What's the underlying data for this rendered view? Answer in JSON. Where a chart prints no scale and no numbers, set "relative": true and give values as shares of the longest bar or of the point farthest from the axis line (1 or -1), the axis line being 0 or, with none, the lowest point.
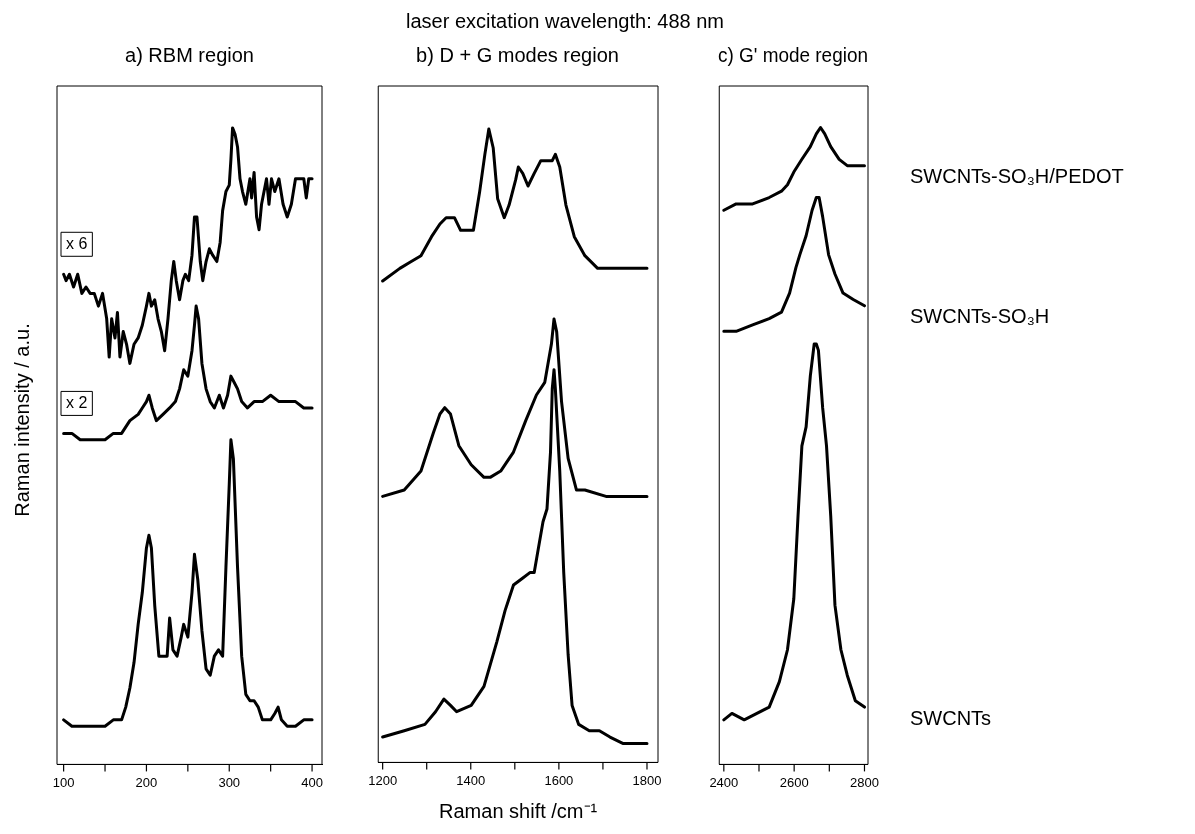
{
  "chart_data": [
    {
      "type": "line",
      "title": "a) RBM region",
      "ylabel": "Raman intensity / a.u.",
      "relative": true,
      "xlim": [
        92,
        412
      ],
      "xticks": [
        100,
        {
          "value": 150,
          "label": null
        },
        200,
        {
          "value": 250,
          "label": null
        },
        300,
        {
          "value": 350,
          "label": null
        },
        400
      ],
      "tick_labels": "x",
      "legend": false,
      "marker": "none",
      "line_style": "solid",
      "annotations": [
        "x 6",
        "x 2"
      ],
      "series": [
        {
          "color": "#000000",
          "x": [
            100,
            103,
            107,
            112,
            117,
            122,
            127,
            132,
            137,
            142,
            147,
            152,
            155,
            158,
            162,
            165,
            168,
            172,
            176,
            180,
            185,
            190,
            195,
            200,
            203,
            206,
            210,
            214,
            218,
            222,
            226,
            230,
            233,
            236,
            240,
            244,
            247,
            251,
            255,
            258,
            261,
            265,
            268,
            272,
            276,
            280,
            285,
            289,
            292,
            296,
            300,
            302,
            304,
            307,
            310,
            313,
            316,
            320,
            325,
            327,
            330,
            333,
            336,
            339,
            342,
            345,
            348,
            351,
            355,
            360,
            365,
            370,
            375,
            380,
            385,
            390,
            393,
            396,
            400
          ],
          "values": [
            0.77,
            0.76,
            0.77,
            0.75,
            0.77,
            0.74,
            0.75,
            0.74,
            0.74,
            0.72,
            0.74,
            0.7,
            0.64,
            0.7,
            0.67,
            0.71,
            0.64,
            0.68,
            0.66,
            0.63,
            0.66,
            0.67,
            0.69,
            0.72,
            0.74,
            0.72,
            0.73,
            0.7,
            0.68,
            0.65,
            0.7,
            0.76,
            0.79,
            0.76,
            0.73,
            0.76,
            0.77,
            0.76,
            0.8,
            0.86,
            0.86,
            0.79,
            0.76,
            0.79,
            0.81,
            0.8,
            0.79,
            0.82,
            0.87,
            0.9,
            0.91,
            0.95,
            1,
            0.99,
            0.97,
            0.92,
            0.9,
            0.88,
            0.92,
            0.89,
            0.93,
            0.86,
            0.84,
            0.88,
            0.9,
            0.92,
            0.88,
            0.92,
            0.9,
            0.92,
            0.88,
            0.86,
            0.88,
            0.92,
            0.92,
            0.92,
            0.89,
            0.92,
            0.92
          ]
        },
        {
          "color": "#000000",
          "x": [
            100,
            110,
            120,
            130,
            140,
            150,
            160,
            170,
            180,
            190,
            195,
            200,
            203,
            207,
            212,
            220,
            228,
            235,
            240,
            245,
            250,
            255,
            258,
            260,
            263,
            267,
            272,
            277,
            282,
            288,
            293,
            298,
            302,
            306,
            310,
            315,
            322,
            330,
            340,
            350,
            360,
            370,
            380,
            390,
            400
          ],
          "values": [
            0.52,
            0.52,
            0.51,
            0.51,
            0.51,
            0.51,
            0.52,
            0.52,
            0.54,
            0.55,
            0.56,
            0.57,
            0.58,
            0.56,
            0.54,
            0.55,
            0.56,
            0.57,
            0.59,
            0.62,
            0.61,
            0.65,
            0.69,
            0.72,
            0.7,
            0.63,
            0.59,
            0.57,
            0.56,
            0.58,
            0.56,
            0.58,
            0.61,
            0.6,
            0.59,
            0.57,
            0.56,
            0.57,
            0.57,
            0.58,
            0.57,
            0.57,
            0.57,
            0.56,
            0.56
          ]
        },
        {
          "color": "#000000",
          "x": [
            100,
            110,
            120,
            130,
            140,
            150,
            160,
            170,
            175,
            180,
            185,
            190,
            195,
            200,
            203,
            206,
            210,
            215,
            220,
            225,
            228,
            232,
            237,
            242,
            245,
            250,
            255,
            258,
            262,
            267,
            272,
            277,
            282,
            287,
            292,
            296,
            300,
            302,
            305,
            310,
            315,
            320,
            325,
            330,
            335,
            340,
            350,
            355,
            359,
            363,
            370,
            380,
            390,
            400
          ],
          "values": [
            0.07,
            0.06,
            0.06,
            0.06,
            0.06,
            0.06,
            0.07,
            0.07,
            0.09,
            0.12,
            0.16,
            0.22,
            0.27,
            0.34,
            0.36,
            0.34,
            0.25,
            0.17,
            0.17,
            0.17,
            0.23,
            0.18,
            0.17,
            0.2,
            0.22,
            0.2,
            0.27,
            0.33,
            0.29,
            0.21,
            0.15,
            0.14,
            0.17,
            0.18,
            0.17,
            0.31,
            0.44,
            0.51,
            0.48,
            0.31,
            0.17,
            0.11,
            0.1,
            0.1,
            0.09,
            0.07,
            0.07,
            0.08,
            0.09,
            0.07,
            0.06,
            0.06,
            0.07,
            0.07
          ]
        }
      ]
    },
    {
      "type": "line",
      "title": "b) D + G modes region",
      "xlabel": "Raman shift /cm⁻¹",
      "relative": true,
      "xlim": [
        1190,
        1825
      ],
      "xticks": [
        1200,
        {
          "value": 1300,
          "label": null
        },
        1400,
        {
          "value": 1500,
          "label": null
        },
        1600,
        {
          "value": 1700,
          "label": null
        },
        1800
      ],
      "tick_labels": "x",
      "legend": false,
      "marker": "none",
      "line_style": "solid",
      "subtitle": "laser excitation wavelength: 488 nm",
      "series": [
        {
          "color": "#000000",
          "x": [
            1200,
            1239,
            1263,
            1287,
            1311,
            1330,
            1344,
            1363,
            1377,
            1392,
            1406,
            1420,
            1432,
            1441,
            1451,
            1461,
            1476,
            1487,
            1502,
            1508,
            1518,
            1530,
            1544,
            1559,
            1573,
            1585,
            1592,
            1602,
            1616,
            1635,
            1659,
            1688,
            1726,
            1764,
            1800
          ],
          "values": [
            0.76,
            0.78,
            0.79,
            0.8,
            0.83,
            0.85,
            0.86,
            0.86,
            0.84,
            0.84,
            0.84,
            0.9,
            0.96,
            1,
            0.97,
            0.89,
            0.86,
            0.88,
            0.92,
            0.94,
            0.93,
            0.91,
            0.93,
            0.95,
            0.95,
            0.95,
            0.96,
            0.94,
            0.88,
            0.83,
            0.8,
            0.78,
            0.78,
            0.78,
            0.78
          ]
        },
        {
          "color": "#000000",
          "x": [
            1200,
            1249,
            1287,
            1315,
            1330,
            1341,
            1354,
            1373,
            1401,
            1430,
            1444,
            1468,
            1497,
            1525,
            1549,
            1568,
            1583,
            1589,
            1595,
            1606,
            1621,
            1640,
            1659,
            1707,
            1754,
            1800
          ],
          "values": [
            0.42,
            0.43,
            0.46,
            0.52,
            0.55,
            0.56,
            0.55,
            0.5,
            0.47,
            0.45,
            0.45,
            0.46,
            0.49,
            0.54,
            0.58,
            0.6,
            0.66,
            0.7,
            0.68,
            0.57,
            0.48,
            0.43,
            0.43,
            0.42,
            0.42,
            0.42
          ]
        },
        {
          "color": "#000000",
          "x": [
            1200,
            1249,
            1296,
            1320,
            1339,
            1354,
            1368,
            1401,
            1430,
            1459,
            1478,
            1497,
            1516,
            1535,
            1544,
            1554,
            1564,
            1573,
            1581,
            1585,
            1589,
            1592,
            1602,
            1611,
            1621,
            1630,
            1645,
            1669,
            1692,
            1716,
            1745,
            1773,
            1800
          ],
          "values": [
            0.04,
            0.05,
            0.06,
            0.08,
            0.1,
            0.09,
            0.08,
            0.09,
            0.12,
            0.19,
            0.24,
            0.28,
            0.29,
            0.3,
            0.3,
            0.34,
            0.38,
            0.4,
            0.49,
            0.59,
            0.62,
            0.59,
            0.46,
            0.3,
            0.17,
            0.09,
            0.06,
            0.05,
            0.05,
            0.04,
            0.03,
            0.03,
            0.03
          ]
        }
      ]
    },
    {
      "type": "line",
      "title": "c) G' mode region",
      "relative": true,
      "xlim": [
        2387,
        2810
      ],
      "xticks": [
        2400,
        {
          "value": 2500,
          "label": null
        },
        2600,
        {
          "value": 2700,
          "label": null
        },
        2800
      ],
      "tick_labels": "x",
      "legend": false,
      "marker": "none",
      "line_style": "solid",
      "series": [
        {
          "name": "SWCNTs-SO₃H/PEDOT",
          "color": "#000000",
          "x": [
            2400,
            2435,
            2482,
            2529,
            2564,
            2581,
            2599,
            2622,
            2646,
            2663,
            2675,
            2687,
            2704,
            2728,
            2751,
            2768,
            2786,
            2800
          ],
          "values": [
            0.87,
            0.88,
            0.88,
            0.89,
            0.9,
            0.91,
            0.93,
            0.95,
            0.97,
            0.99,
            1,
            0.99,
            0.97,
            0.95,
            0.94,
            0.94,
            0.94,
            0.94
          ]
        },
        {
          "name": "SWCNTs-SO₃H",
          "color": "#000000",
          "x": [
            2400,
            2435,
            2482,
            2529,
            2564,
            2587,
            2605,
            2616,
            2634,
            2651,
            2663,
            2671,
            2681,
            2698,
            2716,
            2739,
            2768,
            2800
          ],
          "values": [
            0.68,
            0.68,
            0.69,
            0.7,
            0.71,
            0.74,
            0.78,
            0.8,
            0.83,
            0.87,
            0.89,
            0.89,
            0.86,
            0.8,
            0.77,
            0.74,
            0.73,
            0.72
          ]
        },
        {
          "name": "SWCNTs",
          "color": "#000000",
          "x": [
            2400,
            2423,
            2458,
            2494,
            2529,
            2558,
            2581,
            2599,
            2611,
            2622,
            2634,
            2646,
            2657,
            2663,
            2669,
            2681,
            2692,
            2704,
            2716,
            2733,
            2751,
            2774,
            2800
          ],
          "values": [
            0.07,
            0.08,
            0.07,
            0.08,
            0.09,
            0.13,
            0.18,
            0.26,
            0.39,
            0.5,
            0.53,
            0.61,
            0.66,
            0.66,
            0.65,
            0.56,
            0.5,
            0.39,
            0.25,
            0.18,
            0.14,
            0.1,
            0.09
          ]
        }
      ]
    }
  ]
}
